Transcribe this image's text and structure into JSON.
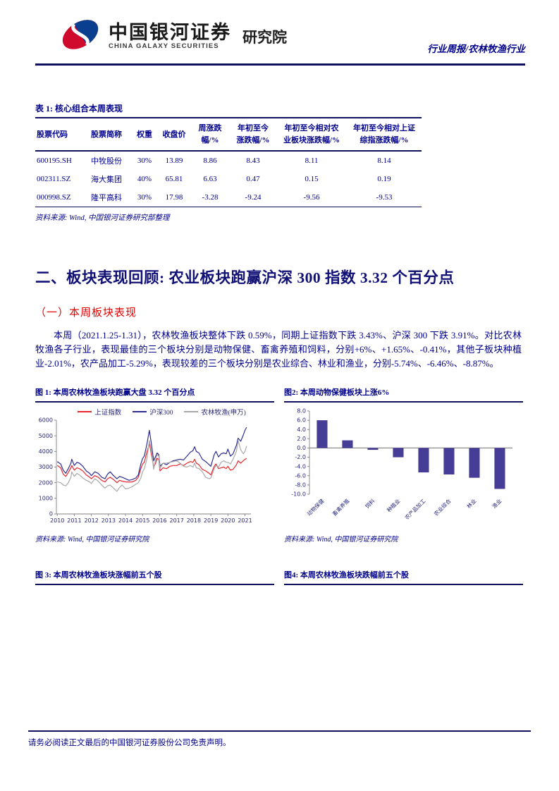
{
  "colors": {
    "navy_text": "#00008B",
    "rule_navy": "#101060",
    "accent_red": "#e60000",
    "logo_red": "#cf0a2c",
    "logo_blue": "#0a3f8f",
    "bar_fill": "#453d96"
  },
  "header": {
    "brand_cn": "中国银河证券",
    "brand_en": "CHINA GALAXY SECURITIES",
    "brand_suffix": "研究院",
    "report_type": "行业周报/农林牧渔行业"
  },
  "table1": {
    "title": "表 1:  核心组合本周表现",
    "columns": [
      "股票代码",
      "股票简称",
      "权重",
      "收盘价",
      "周涨跌\n幅/%",
      "年初至今\n涨跌幅/%",
      "年初至今相对农\n业板块涨跌幅/%",
      "年初至今相对上证\n综指涨跌幅/%"
    ],
    "rows": [
      [
        "600195.SH",
        "中牧股份",
        "30%",
        "13.89",
        "8.86",
        "8.43",
        "8.11",
        "8.14"
      ],
      [
        "002311.SZ",
        "海大集团",
        "40%",
        "65.81",
        "6.63",
        "0.47",
        "0.15",
        "0.19"
      ],
      [
        "000998.SZ",
        "隆平高科",
        "30%",
        "17.98",
        "-3.28",
        "-9.24",
        "-9.56",
        "-9.53"
      ]
    ],
    "source": "资料来源: Wind, 中国银河证券研究部整理"
  },
  "section": {
    "heading": "二、板块表现回顾: 农业板块跑赢沪深 300 指数 3.32 个百分点",
    "subheading": "（一）本周板块表现",
    "paragraph": "本周（2021.1.25-1.31），农林牧渔板块整体下跌 0.59%，同期上证指数下跌 3.43%、沪深 300 下跌 3.91%。对比农林牧渔各子行业，表现最佳的三个板块分别是动物保健、畜禽养殖和饲料，分别+6%、+1.65%、-0.41%，其他子板块种植业-2.01%，农产品加工-5.29%，表现较差的三个板块分别是农业综合、林业和渔业，分别-5.74%、-6.46%、-8.87%。"
  },
  "figures": {
    "fig1": {
      "title": "图 1:  本周农林牧渔板块跑赢大盘 3.32 个百分点",
      "source": "资料来源: Wind, 中国银河证券研究院"
    },
    "fig2": {
      "title": "图2:  本周动物保健板块上涨6%",
      "source": "资料来源: Wind, 中国银河证券研究院"
    },
    "fig3": {
      "title": "图 3:  本周农林牧渔板块涨幅前五个股"
    },
    "fig4": {
      "title": "图4:  本周农林牧渔板块跌幅前五个股"
    }
  },
  "footer": {
    "disclaimer": "请务必阅读正文最后的中国银河证券股份公司免责声明。"
  },
  "chart_data": [
    {
      "type": "line",
      "title": "图 1: 本周农林牧渔板块跑赢大盘 3.32 个百分点",
      "xlabel": "",
      "ylabel": "",
      "xlim": [
        2009.95,
        2021.35
      ],
      "ylim": [
        0,
        6000
      ],
      "yticks": [
        0,
        1000,
        2000,
        3000,
        4000,
        5000,
        6000
      ],
      "xticks": [
        2010,
        2011,
        2012,
        2013,
        2014,
        2015,
        2016,
        2017,
        2018,
        2019,
        2020,
        2021
      ],
      "grid": false,
      "legend_position": "top",
      "series": [
        {
          "name": "上证指数",
          "color": "#e8272c",
          "points": [
            [
              2010.0,
              3100
            ],
            [
              2010.2,
              2950
            ],
            [
              2010.35,
              2550
            ],
            [
              2010.5,
              2400
            ],
            [
              2010.65,
              2650
            ],
            [
              2010.8,
              2950
            ],
            [
              2010.85,
              3100
            ],
            [
              2011.0,
              2800
            ],
            [
              2011.15,
              2950
            ],
            [
              2011.3,
              2900
            ],
            [
              2011.5,
              2750
            ],
            [
              2011.7,
              2500
            ],
            [
              2011.9,
              2350
            ],
            [
              2012.0,
              2250
            ],
            [
              2012.2,
              2450
            ],
            [
              2012.4,
              2350
            ],
            [
              2012.6,
              2150
            ],
            [
              2012.8,
              2050
            ],
            [
              2012.95,
              2250
            ],
            [
              2013.1,
              2350
            ],
            [
              2013.3,
              2200
            ],
            [
              2013.5,
              2000
            ],
            [
              2013.65,
              2150
            ],
            [
              2013.8,
              2100
            ],
            [
              2014.0,
              2050
            ],
            [
              2014.2,
              2050
            ],
            [
              2014.4,
              2050
            ],
            [
              2014.6,
              2150
            ],
            [
              2014.75,
              2350
            ],
            [
              2014.9,
              2900
            ],
            [
              2015.0,
              3200
            ],
            [
              2015.1,
              3300
            ],
            [
              2015.25,
              3950
            ],
            [
              2015.4,
              4500
            ],
            [
              2015.5,
              3900
            ],
            [
              2015.55,
              3600
            ],
            [
              2015.65,
              3050
            ],
            [
              2015.75,
              3200
            ],
            [
              2015.85,
              3550
            ],
            [
              2015.95,
              3500
            ],
            [
              2016.02,
              2750
            ],
            [
              2016.2,
              2950
            ],
            [
              2016.4,
              2900
            ],
            [
              2016.6,
              3050
            ],
            [
              2016.8,
              3100
            ],
            [
              2017.0,
              3100
            ],
            [
              2017.2,
              3200
            ],
            [
              2017.4,
              3100
            ],
            [
              2017.6,
              3250
            ],
            [
              2017.8,
              3350
            ],
            [
              2017.95,
              3300
            ],
            [
              2018.05,
              3500
            ],
            [
              2018.15,
              3250
            ],
            [
              2018.3,
              3150
            ],
            [
              2018.5,
              2850
            ],
            [
              2018.7,
              2750
            ],
            [
              2018.9,
              2600
            ],
            [
              2019.0,
              2500
            ],
            [
              2019.2,
              3050
            ],
            [
              2019.3,
              3200
            ],
            [
              2019.45,
              2900
            ],
            [
              2019.6,
              2950
            ],
            [
              2019.75,
              3000
            ],
            [
              2019.9,
              2900
            ],
            [
              2020.0,
              3050
            ],
            [
              2020.15,
              2800
            ],
            [
              2020.3,
              2850
            ],
            [
              2020.5,
              3150
            ],
            [
              2020.6,
              3400
            ],
            [
              2020.75,
              3250
            ],
            [
              2020.9,
              3400
            ],
            [
              2021.0,
              3500
            ],
            [
              2021.1,
              3550
            ]
          ]
        },
        {
          "name": "沪深300",
          "color": "#2e2e8f",
          "points": [
            [
              2010.0,
              3350
            ],
            [
              2010.2,
              3200
            ],
            [
              2010.35,
              2800
            ],
            [
              2010.5,
              2600
            ],
            [
              2010.65,
              2900
            ],
            [
              2010.8,
              3250
            ],
            [
              2010.85,
              3500
            ],
            [
              2011.0,
              3100
            ],
            [
              2011.15,
              3300
            ],
            [
              2011.3,
              3250
            ],
            [
              2011.5,
              3050
            ],
            [
              2011.7,
              2750
            ],
            [
              2011.9,
              2600
            ],
            [
              2012.0,
              2450
            ],
            [
              2012.2,
              2700
            ],
            [
              2012.4,
              2600
            ],
            [
              2012.6,
              2350
            ],
            [
              2012.8,
              2250
            ],
            [
              2012.95,
              2550
            ],
            [
              2013.1,
              2700
            ],
            [
              2013.3,
              2450
            ],
            [
              2013.5,
              2250
            ],
            [
              2013.65,
              2400
            ],
            [
              2013.8,
              2350
            ],
            [
              2014.0,
              2250
            ],
            [
              2014.2,
              2150
            ],
            [
              2014.4,
              2200
            ],
            [
              2014.6,
              2300
            ],
            [
              2014.75,
              2500
            ],
            [
              2014.9,
              3200
            ],
            [
              2015.0,
              3550
            ],
            [
              2015.1,
              3700
            ],
            [
              2015.25,
              4450
            ],
            [
              2015.4,
              5350
            ],
            [
              2015.5,
              4600
            ],
            [
              2015.55,
              4200
            ],
            [
              2015.65,
              3400
            ],
            [
              2015.75,
              3650
            ],
            [
              2015.85,
              3900
            ],
            [
              2015.95,
              3800
            ],
            [
              2016.02,
              3050
            ],
            [
              2016.2,
              3250
            ],
            [
              2016.4,
              3150
            ],
            [
              2016.6,
              3300
            ],
            [
              2016.8,
              3400
            ],
            [
              2017.0,
              3450
            ],
            [
              2017.2,
              3500
            ],
            [
              2017.4,
              3450
            ],
            [
              2017.6,
              3700
            ],
            [
              2017.8,
              3950
            ],
            [
              2017.95,
              4050
            ],
            [
              2018.05,
              4300
            ],
            [
              2018.15,
              4000
            ],
            [
              2018.3,
              3900
            ],
            [
              2018.5,
              3500
            ],
            [
              2018.7,
              3350
            ],
            [
              2018.9,
              3150
            ],
            [
              2019.0,
              3050
            ],
            [
              2019.2,
              3800
            ],
            [
              2019.3,
              4000
            ],
            [
              2019.45,
              3650
            ],
            [
              2019.6,
              3850
            ],
            [
              2019.75,
              3900
            ],
            [
              2019.9,
              3850
            ],
            [
              2020.0,
              4150
            ],
            [
              2020.15,
              3700
            ],
            [
              2020.3,
              3850
            ],
            [
              2020.5,
              4400
            ],
            [
              2020.6,
              4850
            ],
            [
              2020.75,
              4650
            ],
            [
              2020.9,
              5050
            ],
            [
              2021.0,
              5350
            ],
            [
              2021.1,
              5550
            ]
          ]
        },
        {
          "name": "农林牧渔(申万)",
          "color": "#a9a9a9",
          "points": [
            [
              2010.0,
              2050
            ],
            [
              2010.2,
              2000
            ],
            [
              2010.35,
              1850
            ],
            [
              2010.5,
              1800
            ],
            [
              2010.65,
              2000
            ],
            [
              2010.8,
              2350
            ],
            [
              2010.85,
              2700
            ],
            [
              2011.0,
              2400
            ],
            [
              2011.15,
              2600
            ],
            [
              2011.3,
              2500
            ],
            [
              2011.5,
              2300
            ],
            [
              2011.7,
              2150
            ],
            [
              2011.9,
              2050
            ],
            [
              2012.0,
              1950
            ],
            [
              2012.2,
              2250
            ],
            [
              2012.4,
              2100
            ],
            [
              2012.6,
              1850
            ],
            [
              2012.8,
              1650
            ],
            [
              2012.95,
              1800
            ],
            [
              2013.1,
              1850
            ],
            [
              2013.3,
              1650
            ],
            [
              2013.5,
              1450
            ],
            [
              2013.65,
              1700
            ],
            [
              2013.8,
              1850
            ],
            [
              2014.0,
              1600
            ],
            [
              2014.2,
              1650
            ],
            [
              2014.4,
              1750
            ],
            [
              2014.6,
              1900
            ],
            [
              2014.75,
              2000
            ],
            [
              2014.9,
              2300
            ],
            [
              2015.0,
              2700
            ],
            [
              2015.1,
              2900
            ],
            [
              2015.25,
              3500
            ],
            [
              2015.4,
              4700
            ],
            [
              2015.5,
              4100
            ],
            [
              2015.55,
              3800
            ],
            [
              2015.65,
              2850
            ],
            [
              2015.75,
              3400
            ],
            [
              2015.85,
              3800
            ],
            [
              2015.95,
              3700
            ],
            [
              2016.02,
              2900
            ],
            [
              2016.2,
              3250
            ],
            [
              2016.4,
              3250
            ],
            [
              2016.6,
              3300
            ],
            [
              2016.8,
              3350
            ],
            [
              2017.0,
              3400
            ],
            [
              2017.2,
              3250
            ],
            [
              2017.4,
              3050
            ],
            [
              2017.6,
              3000
            ],
            [
              2017.8,
              3100
            ],
            [
              2017.95,
              3000
            ],
            [
              2018.05,
              3250
            ],
            [
              2018.15,
              2950
            ],
            [
              2018.3,
              2900
            ],
            [
              2018.5,
              2700
            ],
            [
              2018.7,
              2350
            ],
            [
              2018.9,
              2250
            ],
            [
              2019.0,
              2300
            ],
            [
              2019.2,
              2900
            ],
            [
              2019.3,
              3100
            ],
            [
              2019.45,
              3000
            ],
            [
              2019.6,
              3300
            ],
            [
              2019.75,
              3400
            ],
            [
              2019.9,
              3300
            ],
            [
              2020.0,
              3300
            ],
            [
              2020.15,
              3200
            ],
            [
              2020.3,
              3500
            ],
            [
              2020.5,
              4000
            ],
            [
              2020.6,
              4700
            ],
            [
              2020.75,
              4100
            ],
            [
              2020.9,
              3850
            ],
            [
              2021.0,
              4000
            ],
            [
              2021.1,
              4350
            ]
          ]
        }
      ]
    },
    {
      "type": "bar",
      "title": "图2: 本周动物保健板块上涨6%",
      "categories": [
        "动物保健",
        "畜禽养殖",
        "饲料",
        "种植业",
        "农产品加工",
        "农业综合",
        "林业",
        "渔业"
      ],
      "values": [
        6.0,
        1.65,
        -0.41,
        -2.01,
        -5.29,
        -5.74,
        -6.46,
        -8.87
      ],
      "ylim": [
        -10,
        8
      ],
      "ytick_step": 2,
      "grid": false,
      "bar_color": "#453d96"
    }
  ]
}
